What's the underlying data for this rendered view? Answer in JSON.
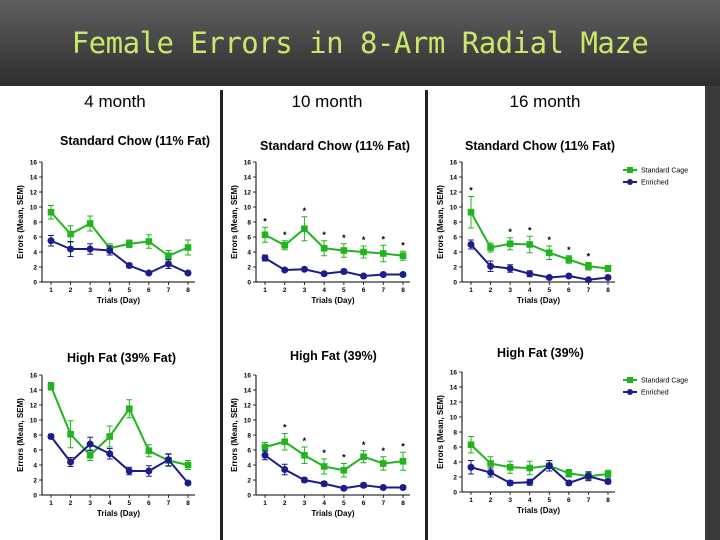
{
  "title": "Female Errors in 8-Arm Radial Maze",
  "columns": [
    "4 month",
    "10 month",
    "16 month"
  ],
  "colors": {
    "standard": "#22b41e",
    "enriched": "#1c1c8c",
    "axis": "#000000"
  },
  "chart_data": [
    {
      "type": "line",
      "title": "Standard Chow (11% Fat)",
      "column": "4 month",
      "xlabel": "Trials (Day)",
      "ylabel": "Errors (Mean, SEM)",
      "categories": [
        "1",
        "2",
        "3",
        "4",
        "5",
        "6",
        "7",
        "8"
      ],
      "ylim": [
        0,
        16
      ],
      "yticks": [
        0,
        2,
        4,
        6,
        8,
        10,
        12,
        14,
        16
      ],
      "legend": false,
      "series": [
        {
          "name": "Standard Cage",
          "values": [
            9.3,
            6.4,
            7.8,
            4.5,
            5.1,
            5.4,
            3.5,
            4.6
          ],
          "sem": [
            0.9,
            1.1,
            1.0,
            0.6,
            0.5,
            0.9,
            0.7,
            1.0
          ]
        },
        {
          "name": "Enriched",
          "values": [
            5.5,
            4.4,
            4.4,
            4.2,
            2.2,
            1.2,
            2.4,
            1.2
          ],
          "sem": [
            0.7,
            1.0,
            0.7,
            0.6,
            0.3,
            0.2,
            0.6,
            0.2
          ]
        }
      ],
      "significance": []
    },
    {
      "type": "line",
      "title": "Standard Chow (11% Fat)",
      "column": "10 month",
      "xlabel": "Trials (Day)",
      "ylabel": "Errors (Mean, SEM)",
      "categories": [
        "1",
        "2",
        "3",
        "4",
        "5",
        "6",
        "7",
        "8"
      ],
      "ylim": [
        0,
        16
      ],
      "yticks": [
        0,
        2,
        4,
        6,
        8,
        10,
        12,
        14,
        16
      ],
      "legend": false,
      "series": [
        {
          "name": "Standard Cage",
          "values": [
            6.3,
            4.9,
            7.1,
            4.5,
            4.2,
            4.0,
            3.8,
            3.5
          ],
          "sem": [
            1.0,
            0.6,
            1.6,
            1.0,
            0.9,
            0.8,
            1.1,
            0.6
          ]
        },
        {
          "name": "Enriched",
          "values": [
            3.2,
            1.6,
            1.7,
            1.1,
            1.4,
            0.8,
            1.0,
            1.0
          ],
          "sem": [
            0.4,
            0.2,
            0.2,
            0.2,
            0.3,
            0.2,
            0.2,
            0.2
          ]
        }
      ],
      "significance": [
        "1",
        "2",
        "3",
        "4",
        "5",
        "6",
        "7",
        "8"
      ]
    },
    {
      "type": "line",
      "title": "Standard Chow (11% Fat)",
      "column": "16 month",
      "xlabel": "Trials (Day)",
      "ylabel": "Errors (Mean, SEM)",
      "categories": [
        "1",
        "2",
        "3",
        "4",
        "5",
        "6",
        "7",
        "8"
      ],
      "ylim": [
        0,
        16
      ],
      "yticks": [
        0,
        2,
        4,
        6,
        8,
        10,
        12,
        14,
        16
      ],
      "legend": true,
      "legend_entries": [
        "Standard Cage",
        "Enriched"
      ],
      "series": [
        {
          "name": "Standard Cage",
          "values": [
            9.3,
            4.6,
            5.1,
            5.0,
            3.9,
            3.0,
            2.1,
            1.8
          ],
          "sem": [
            2.1,
            0.6,
            0.8,
            1.1,
            0.9,
            0.5,
            0.5,
            0.4
          ]
        },
        {
          "name": "Enriched",
          "values": [
            5.0,
            2.1,
            1.8,
            1.1,
            0.6,
            0.8,
            0.3,
            0.6
          ],
          "sem": [
            0.6,
            0.7,
            0.5,
            0.4,
            0.2,
            0.2,
            0.1,
            0.2
          ]
        }
      ],
      "significance": [
        "1",
        "3",
        "4",
        "5",
        "6",
        "7"
      ]
    },
    {
      "type": "line",
      "title": "High Fat (39% Fat)",
      "column": "4 month",
      "xlabel": "Trials (Day)",
      "ylabel": "Errors (Mean, SEM)",
      "categories": [
        "1",
        "2",
        "3",
        "4",
        "5",
        "6",
        "7",
        "8"
      ],
      "ylim": [
        0,
        16
      ],
      "yticks": [
        0,
        2,
        4,
        6,
        8,
        10,
        12,
        14,
        16
      ],
      "legend": false,
      "series": [
        {
          "name": "Standard Cage",
          "values": [
            14.5,
            8.1,
            5.3,
            7.8,
            11.5,
            5.9,
            4.6,
            4.0
          ],
          "sem": [
            0.5,
            1.8,
            0.7,
            1.4,
            1.2,
            0.8,
            0.8,
            0.6
          ]
        },
        {
          "name": "Enriched",
          "values": [
            7.8,
            4.4,
            6.8,
            5.5,
            3.2,
            3.2,
            4.7,
            1.6
          ],
          "sem": [
            0.3,
            0.6,
            0.9,
            0.7,
            0.5,
            0.7,
            0.8,
            0.2
          ]
        }
      ],
      "significance": []
    },
    {
      "type": "line",
      "title": "High Fat (39%)",
      "column": "10 month",
      "xlabel": "Trials (Day)",
      "ylabel": "Errors (Mean, SEM)",
      "categories": [
        "1",
        "2",
        "3",
        "4",
        "5",
        "6",
        "7",
        "8"
      ],
      "ylim": [
        0,
        16
      ],
      "yticks": [
        0,
        2,
        4,
        6,
        8,
        10,
        12,
        14,
        16
      ],
      "legend": false,
      "series": [
        {
          "name": "Standard Cage",
          "values": [
            6.4,
            7.1,
            5.3,
            3.8,
            3.3,
            5.1,
            4.2,
            4.5
          ],
          "sem": [
            0.6,
            1.1,
            1.1,
            1.0,
            0.9,
            0.8,
            0.9,
            1.2
          ]
        },
        {
          "name": "Enriched",
          "values": [
            5.3,
            3.4,
            2.0,
            1.5,
            0.9,
            1.3,
            1.0,
            1.0
          ],
          "sem": [
            0.6,
            0.7,
            0.3,
            0.3,
            0.2,
            0.3,
            0.2,
            0.2
          ]
        }
      ],
      "significance": [
        "2",
        "3",
        "4",
        "5",
        "6",
        "7",
        "8"
      ]
    },
    {
      "type": "line",
      "title": "High Fat (39%)",
      "column": "16 month",
      "xlabel": "Trials (Day)",
      "ylabel": "Errors (Mean, SEM)",
      "categories": [
        "1",
        "2",
        "3",
        "4",
        "5",
        "6",
        "7",
        "8"
      ],
      "ylim": [
        0,
        16
      ],
      "yticks": [
        0,
        2,
        4,
        6,
        8,
        10,
        12,
        14,
        16
      ],
      "legend": true,
      "legend_entries": [
        "Standard Cage",
        "Enriched"
      ],
      "series": [
        {
          "name": "Standard Cage",
          "values": [
            6.3,
            3.8,
            3.3,
            3.2,
            3.5,
            2.5,
            2.1,
            2.4
          ],
          "sem": [
            1.1,
            0.9,
            0.8,
            0.9,
            0.7,
            0.5,
            0.5,
            0.5
          ]
        },
        {
          "name": "Enriched",
          "values": [
            3.3,
            2.6,
            1.2,
            1.3,
            3.5,
            1.2,
            2.1,
            1.4
          ],
          "sem": [
            0.9,
            0.6,
            0.3,
            0.4,
            0.7,
            0.3,
            0.6,
            0.3
          ]
        }
      ],
      "significance": []
    }
  ]
}
